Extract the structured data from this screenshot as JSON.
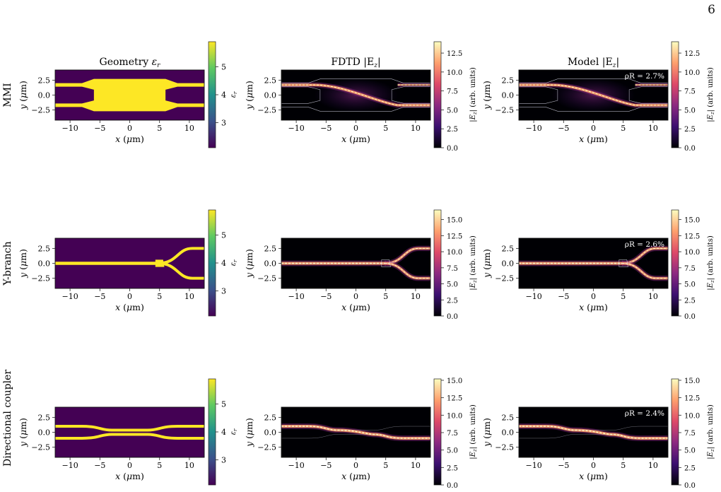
{
  "page_number": "6",
  "columns": [
    {
      "title": "Geometry ε",
      "sub": "r"
    },
    {
      "title": "FDTD |E",
      "sub": "z",
      "suffix": "|"
    },
    {
      "title": "Model |E",
      "sub": "z",
      "suffix": "|"
    }
  ],
  "rows": [
    {
      "label": "MMI",
      "rho": "ρR = 2.7%",
      "ez_ticks": [
        "0.0",
        "2.5",
        "5.0",
        "7.5",
        "10.0",
        "12.5"
      ],
      "ez_max": 14
    },
    {
      "label": "Y-branch",
      "rho": "ρR = 2.6%",
      "ez_ticks": [
        "0.0",
        "2.5",
        "5.0",
        "7.5",
        "10.0",
        "12.5",
        "15.0"
      ],
      "ez_max": 16.5
    },
    {
      "label": "Directional coupler",
      "rho": "ρR = 2.4%",
      "ez_ticks": [
        "0.0",
        "2.5",
        "5.0",
        "7.5",
        "10.0",
        "12.5",
        "15.0"
      ],
      "ez_max": 15.2
    }
  ],
  "axes": {
    "x_ticks": [
      "−10",
      "−5",
      "0",
      "5",
      "10"
    ],
    "y_ticks": [
      "2.5",
      "0.0",
      "−2.5"
    ],
    "xlabel": "x (μm)",
    "ylabel": "y (μm)",
    "xlim": [
      -12.5,
      12.5
    ],
    "ylim": [
      -4.2,
      4.2
    ]
  },
  "eps_colorbar": {
    "ticks": [
      "3",
      "4",
      "5"
    ],
    "label": "εr",
    "range": [
      2.1,
      5.9
    ]
  },
  "ez_colorbar_label": "|Ez| (arb. units)",
  "colors": {
    "cladding": "#440154",
    "core": "#fde725",
    "field_bg": "#000004",
    "outline": "#d9d9e8"
  }
}
